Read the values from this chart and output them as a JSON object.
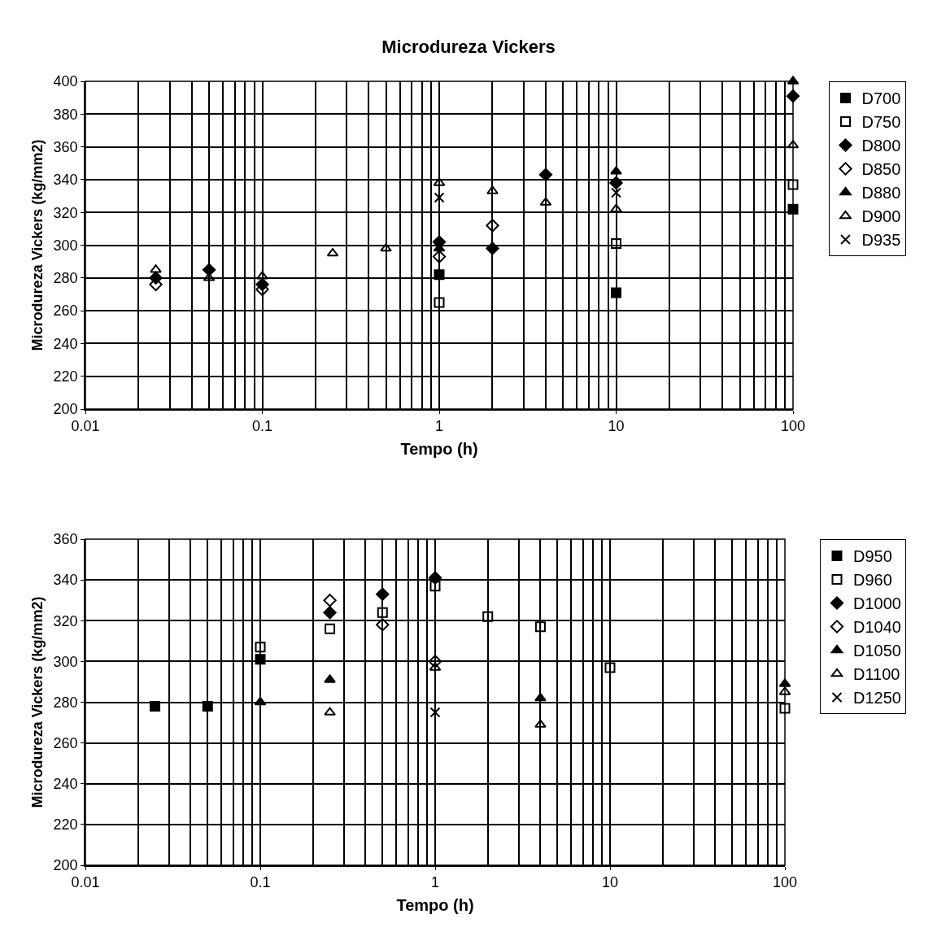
{
  "chart_data": [
    {
      "type": "scatter",
      "title": "Microdureza Vickers",
      "xlabel": "Tempo (h)",
      "ylabel": "Microdureza Vickers (kg/mm2)",
      "log": "x",
      "grid": true,
      "legend": "right",
      "xlim": [
        0.01,
        100
      ],
      "xticks": [
        0.01,
        0.1,
        1,
        10,
        100
      ],
      "ylim": [
        200,
        400
      ],
      "yticks": [
        200,
        220,
        240,
        260,
        280,
        300,
        320,
        340,
        360,
        380,
        400
      ],
      "series": [
        {
          "name": "D700",
          "color": "#000000",
          "marker": "square",
          "x": [
            1,
            10,
            100
          ],
          "values": [
            282,
            271,
            322
          ]
        },
        {
          "name": "D750",
          "color": "#000000",
          "marker": "square-open",
          "x": [
            1,
            10,
            100
          ],
          "values": [
            265,
            301,
            337
          ]
        },
        {
          "name": "D800",
          "color": "#000000",
          "marker": "diamond",
          "x": [
            0.025,
            0.05,
            0.1,
            1,
            2,
            4,
            10,
            100
          ],
          "values": [
            280,
            285,
            276,
            302,
            298,
            343,
            338,
            391
          ]
        },
        {
          "name": "D850",
          "color": "#000000",
          "marker": "diamond-open",
          "x": [
            0.025,
            0.1,
            1,
            2
          ],
          "values": [
            276,
            273,
            293,
            312
          ]
        },
        {
          "name": "D880",
          "color": "#000000",
          "marker": "triangle",
          "x": [
            1,
            10,
            100
          ],
          "values": [
            298,
            345,
            400
          ]
        },
        {
          "name": "D900",
          "color": "#000000",
          "marker": "triangle-open",
          "x": [
            0.025,
            0.05,
            0.1,
            0.25,
            0.5,
            1,
            2,
            4,
            10,
            100
          ],
          "values": [
            285,
            280,
            281,
            295,
            298,
            338,
            333,
            326,
            322,
            361
          ]
        },
        {
          "name": "D935",
          "color": "#000000",
          "marker": "cross",
          "x": [
            1,
            10
          ],
          "values": [
            329,
            332
          ]
        }
      ]
    },
    {
      "type": "scatter",
      "xlabel": "Tempo (h)",
      "ylabel": "Microdureza Vickers (kg/mm2)",
      "log": "x",
      "grid": true,
      "legend": "right",
      "xlim": [
        0.01,
        100
      ],
      "xticks": [
        0.01,
        0.1,
        1,
        10,
        100
      ],
      "ylim": [
        200,
        360
      ],
      "yticks": [
        200,
        220,
        240,
        260,
        280,
        300,
        320,
        340,
        360
      ],
      "series": [
        {
          "name": "D950",
          "color": "#000000",
          "marker": "square",
          "x": [
            0.025,
            0.05,
            0.1
          ],
          "values": [
            278,
            278,
            301
          ]
        },
        {
          "name": "D960",
          "color": "#000000",
          "marker": "square-open",
          "x": [
            0.1,
            0.25,
            0.5,
            1,
            2,
            4,
            10,
            100
          ],
          "values": [
            307,
            316,
            324,
            337,
            322,
            317,
            297,
            277
          ]
        },
        {
          "name": "D1000",
          "color": "#000000",
          "marker": "diamond",
          "x": [
            0.25,
            0.5,
            1
          ],
          "values": [
            324,
            333,
            341
          ]
        },
        {
          "name": "D1040",
          "color": "#000000",
          "marker": "diamond-open",
          "x": [
            0.25,
            0.5,
            1
          ],
          "values": [
            330,
            318,
            300
          ]
        },
        {
          "name": "D1050",
          "color": "#000000",
          "marker": "triangle",
          "x": [
            0.1,
            0.25,
            4,
            100
          ],
          "values": [
            280,
            291,
            282,
            289
          ]
        },
        {
          "name": "D1100",
          "color": "#000000",
          "marker": "triangle-open",
          "x": [
            0.25,
            1,
            4,
            100
          ],
          "values": [
            275,
            297,
            269,
            285
          ]
        },
        {
          "name": "D1250",
          "color": "#000000",
          "marker": "cross",
          "x": [
            1
          ],
          "values": [
            275
          ]
        }
      ]
    }
  ]
}
